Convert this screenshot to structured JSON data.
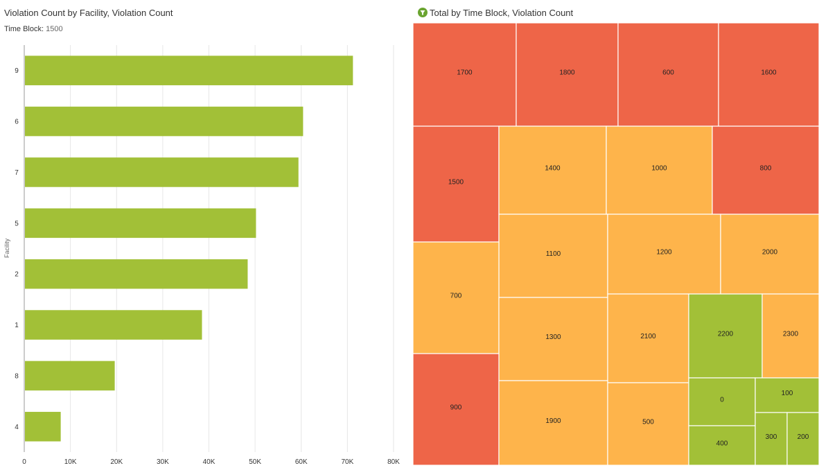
{
  "chart_data": [
    {
      "type": "bar",
      "orientation": "horizontal",
      "title": "Violation Count by Facility, Violation Count",
      "filter": {
        "label": "Time Block:",
        "value": "1500"
      },
      "ylabel": "Facility",
      "xlabel": "",
      "categories": [
        "9",
        "6",
        "7",
        "5",
        "2",
        "1",
        "8",
        "4"
      ],
      "values": [
        71200,
        60400,
        59400,
        50200,
        48400,
        38500,
        19600,
        7900
      ],
      "xlim": [
        0,
        80000
      ],
      "xticks": [
        0,
        10000,
        20000,
        30000,
        40000,
        50000,
        60000,
        70000,
        80000
      ],
      "xtick_labels": [
        "0",
        "10K",
        "20K",
        "30K",
        "40K",
        "50K",
        "60K",
        "70K",
        "80K"
      ],
      "grid": true,
      "bar_color": "#a2c037"
    },
    {
      "type": "treemap",
      "title": "Total by Time Block, Violation Count",
      "color_levels": {
        "high": "#ee6548",
        "medium": "#feb44b",
        "low": "#a2c037"
      },
      "items": [
        {
          "label": "1700",
          "level": "high"
        },
        {
          "label": "1800",
          "level": "high"
        },
        {
          "label": "600",
          "level": "high"
        },
        {
          "label": "1600",
          "level": "high"
        },
        {
          "label": "1500",
          "level": "high"
        },
        {
          "label": "1400",
          "level": "medium"
        },
        {
          "label": "1000",
          "level": "medium"
        },
        {
          "label": "800",
          "level": "high"
        },
        {
          "label": "1100",
          "level": "medium"
        },
        {
          "label": "1200",
          "level": "medium"
        },
        {
          "label": "2000",
          "level": "medium"
        },
        {
          "label": "700",
          "level": "medium"
        },
        {
          "label": "1300",
          "level": "medium"
        },
        {
          "label": "2100",
          "level": "medium"
        },
        {
          "label": "2200",
          "level": "low"
        },
        {
          "label": "2300",
          "level": "medium"
        },
        {
          "label": "900",
          "level": "high"
        },
        {
          "label": "1900",
          "level": "medium"
        },
        {
          "label": "500",
          "level": "medium"
        },
        {
          "label": "0",
          "level": "low"
        },
        {
          "label": "100",
          "level": "low"
        },
        {
          "label": "400",
          "level": "low"
        },
        {
          "label": "300",
          "level": "low"
        },
        {
          "label": "200",
          "level": "low"
        }
      ]
    }
  ]
}
